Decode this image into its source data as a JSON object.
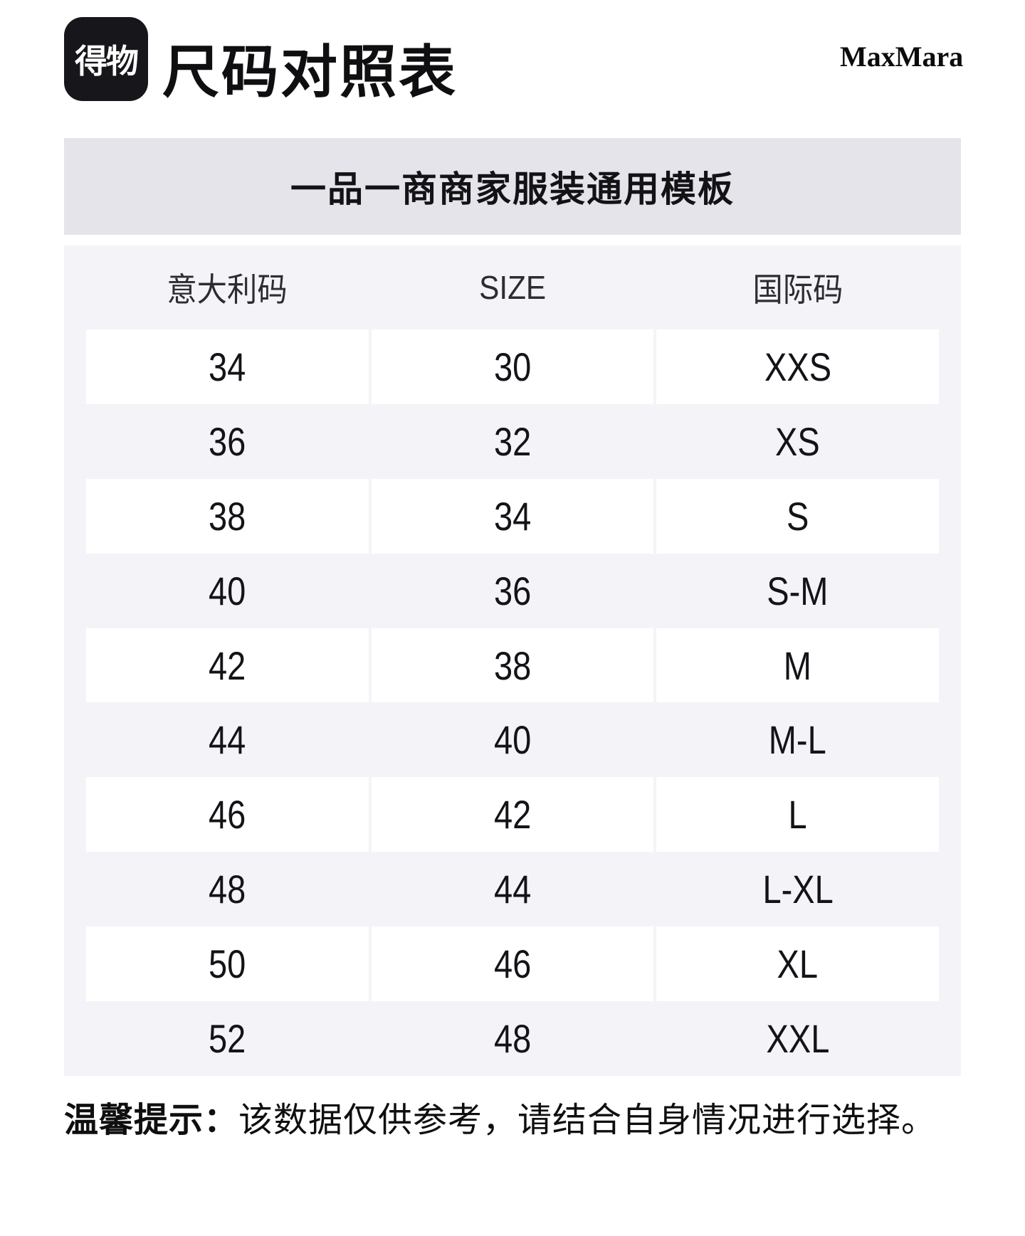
{
  "header": {
    "logo_text": "得物",
    "title": "尺码对照表",
    "brand": "MaxMara"
  },
  "banner": {
    "text": "一品一商商家服装通用模板"
  },
  "size_table": {
    "columns": [
      "意大利码",
      "SIZE",
      "国际码"
    ],
    "rows": [
      [
        "34",
        "30",
        "XXS"
      ],
      [
        "36",
        "32",
        "XS"
      ],
      [
        "38",
        "34",
        "S"
      ],
      [
        "40",
        "36",
        "S-M"
      ],
      [
        "42",
        "38",
        "M"
      ],
      [
        "44",
        "40",
        "M-L"
      ],
      [
        "46",
        "42",
        "L"
      ],
      [
        "48",
        "44",
        "L-XL"
      ],
      [
        "50",
        "46",
        "XL"
      ],
      [
        "52",
        "48",
        "XXL"
      ]
    ]
  },
  "footer": {
    "note_label": "温馨提示：",
    "note_text": "该数据仅供参考，请结合自身情况进行选择。"
  },
  "colors": {
    "banner_bg": "#e4e4ea",
    "table_bg": "#f4f4f8",
    "cell_bg": "#ffffff",
    "logo_bg": "#17171b",
    "text": "#141418"
  }
}
